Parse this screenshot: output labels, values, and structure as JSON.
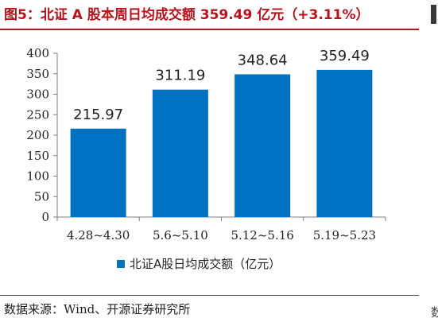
{
  "figure": {
    "title": "图5：北证 A 股本周日均成交额 359.49 亿元（+3.11%）",
    "source": "数据来源：Wind、开源证券研究所",
    "edge_char": "数"
  },
  "colors": {
    "title": "#b5121b",
    "bar": "#0070c0",
    "axis": "#7f7f7f"
  },
  "chart_data": {
    "type": "bar",
    "categories": [
      "4.28~4.30",
      "5.6~5.10",
      "5.12~5.16",
      "5.19~5.23"
    ],
    "series": [
      {
        "name": "北证A股日均成交额（亿元）",
        "values": [
          215.97,
          311.19,
          348.64,
          359.49
        ],
        "value_labels": [
          "215.97",
          "311.19",
          "348.64",
          "359.49"
        ]
      }
    ],
    "ylim": [
      0,
      400
    ],
    "yticks": [
      0,
      50,
      100,
      150,
      200,
      250,
      300,
      350,
      400
    ],
    "grid": false,
    "legend": "bottom"
  }
}
